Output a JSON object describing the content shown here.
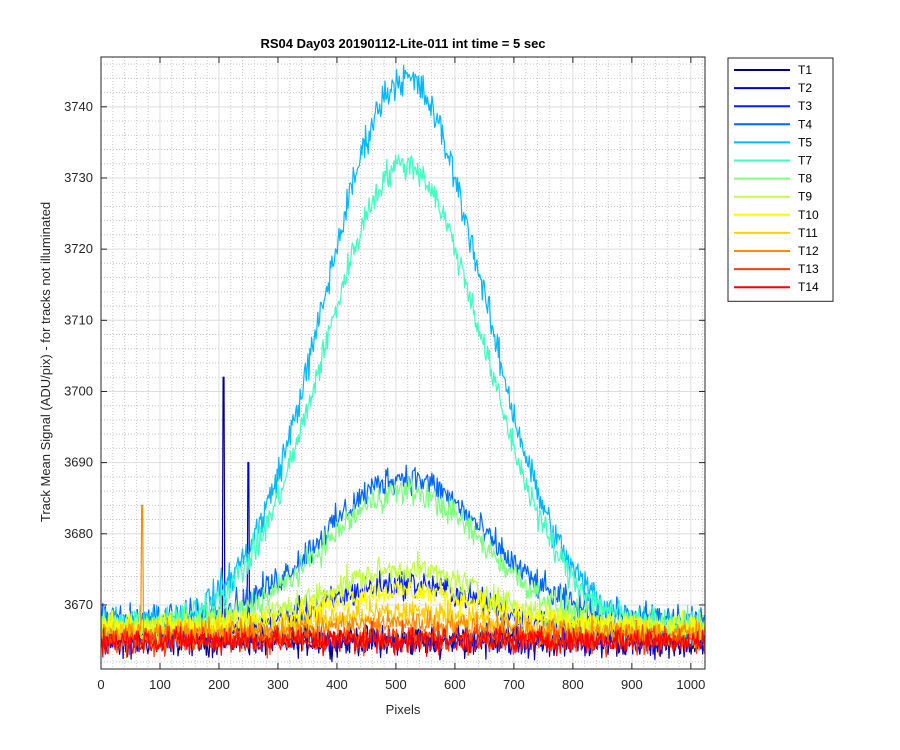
{
  "chart_data": {
    "type": "line",
    "title": "RS04 Day03 20190112-Lite-011 int time = 5 sec",
    "xlabel": "Pixels",
    "ylabel": "Track Mean Signal (ADU/pix) - for tracks not illuminated",
    "xlim": [
      0,
      1024
    ],
    "ylim": [
      3661,
      3747
    ],
    "xticks": [
      0,
      100,
      200,
      300,
      400,
      500,
      600,
      700,
      800,
      900,
      1000
    ],
    "yticks": [
      3670,
      3680,
      3690,
      3700,
      3710,
      3720,
      3730,
      3740
    ],
    "grid": true,
    "minor_grid": true,
    "legend_position": "outside top-right",
    "series": [
      {
        "name": "T1",
        "color": "#00008f",
        "baseline": 3665,
        "amplitude": 0,
        "noise": 1.6,
        "spikes": [
          [
            208,
            3702
          ]
        ]
      },
      {
        "name": "T2",
        "color": "#0000d6",
        "baseline": 3665,
        "amplitude": 0,
        "noise": 1.6,
        "spikes": [
          [
            250,
            3690
          ]
        ]
      },
      {
        "name": "T3",
        "color": "#0020ff",
        "baseline": 3666,
        "amplitude": 7,
        "noise": 1.5,
        "spikes": []
      },
      {
        "name": "T4",
        "color": "#0066ff",
        "baseline": 3668,
        "amplitude": 20,
        "noise": 1.6,
        "spikes": []
      },
      {
        "name": "T5",
        "color": "#00b8ff",
        "baseline": 3667,
        "amplitude": 77,
        "noise": 1.8,
        "spikes": []
      },
      {
        "name": "T7",
        "color": "#40ffbf",
        "baseline": 3667,
        "amplitude": 65,
        "noise": 1.6,
        "spikes": []
      },
      {
        "name": "T8",
        "color": "#80ff80",
        "baseline": 3667,
        "amplitude": 19,
        "noise": 1.5,
        "spikes": []
      },
      {
        "name": "T9",
        "color": "#bfff40",
        "baseline": 3667,
        "amplitude": 8,
        "noise": 1.4,
        "spikes": []
      },
      {
        "name": "T10",
        "color": "#ffff00",
        "baseline": 3667,
        "amplitude": 5,
        "noise": 1.4,
        "spikes": []
      },
      {
        "name": "T11",
        "color": "#ffd000",
        "baseline": 3666,
        "amplitude": 3,
        "noise": 1.4,
        "spikes": []
      },
      {
        "name": "T12",
        "color": "#ff8c00",
        "baseline": 3666,
        "amplitude": 1.5,
        "noise": 1.4,
        "spikes": [
          [
            70,
            3684
          ]
        ]
      },
      {
        "name": "T13",
        "color": "#ff4000",
        "baseline": 3665,
        "amplitude": 0.5,
        "noise": 1.4,
        "spikes": []
      },
      {
        "name": "T14",
        "color": "#ff0000",
        "baseline": 3665,
        "amplitude": 0,
        "noise": 1.4,
        "spikes": []
      }
    ]
  }
}
